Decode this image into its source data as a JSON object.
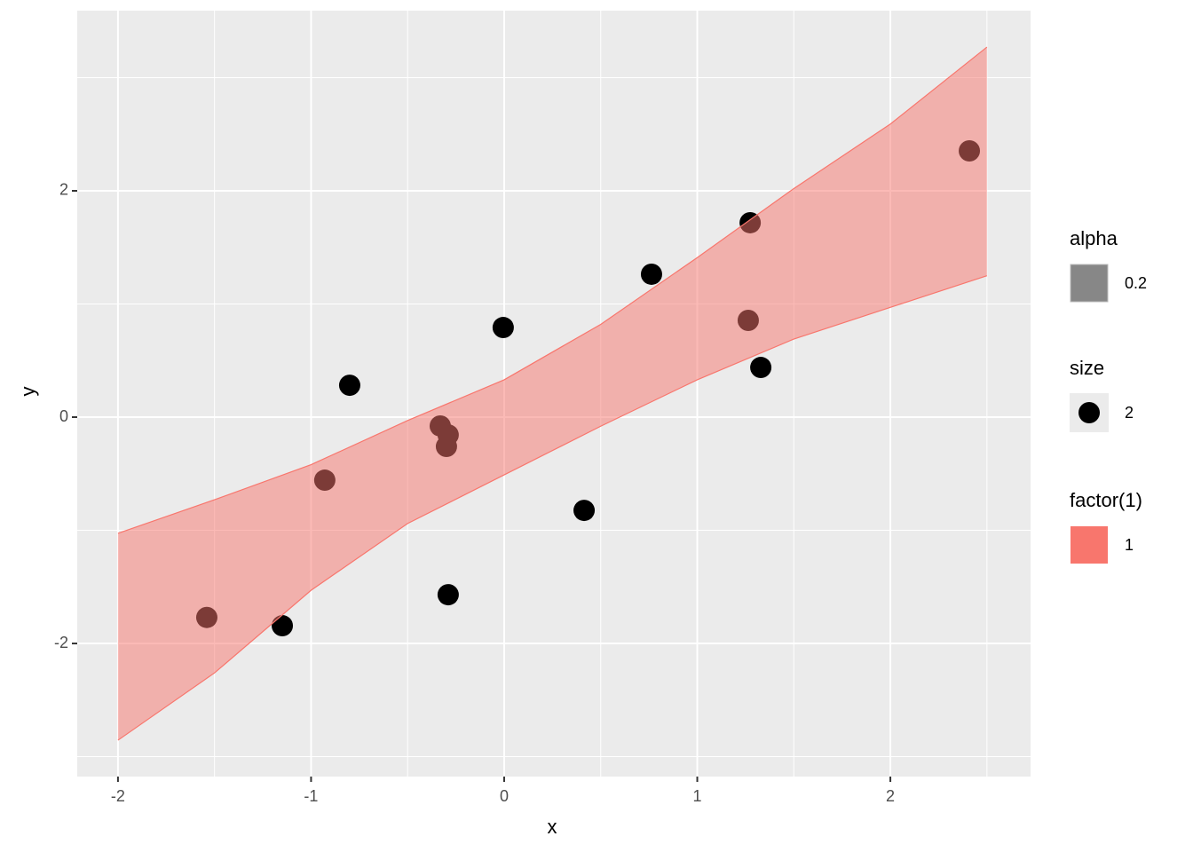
{
  "chart_data": {
    "type": "scatter",
    "x_label": "x",
    "y_label": "y",
    "xlim": [
      -2.211,
      2.726
    ],
    "ylim": [
      -3.176,
      3.592
    ],
    "xticks": [
      -2,
      -1,
      0,
      1,
      2
    ],
    "yticks": [
      -2,
      0,
      2
    ],
    "x_minor_grid": [
      -1.5,
      -0.5,
      0.5,
      1.5,
      2.5
    ],
    "y_minor_grid": [
      -3,
      -1,
      1,
      3
    ],
    "grid": true,
    "series": [
      {
        "color": "#000000",
        "x": [
          -1.54,
          -1.149,
          -0.929,
          -0.8,
          -0.331,
          -0.29,
          -0.299,
          -0.29,
          -0.005,
          0.414,
          0.763,
          1.274,
          1.264,
          1.329,
          2.409
        ],
        "y": [
          -1.77,
          -1.843,
          -0.557,
          0.282,
          -0.078,
          -0.157,
          -0.259,
          -1.569,
          0.792,
          -0.824,
          1.263,
          1.718,
          0.855,
          0.439,
          2.353
        ]
      }
    ],
    "ribbon": {
      "color": "#F8766D",
      "opacity": 0.5,
      "x": [
        -2,
        -1.5,
        -1,
        -0.5,
        0,
        0.5,
        1,
        1.5,
        2,
        2.5
      ],
      "upper": [
        -1.027,
        -0.73,
        -0.42,
        -0.03,
        0.33,
        0.82,
        1.41,
        2.02,
        2.59,
        3.27
      ],
      "lower": [
        -2.855,
        -2.26,
        -1.53,
        -0.94,
        -0.51,
        -0.08,
        0.33,
        0.69,
        0.97,
        1.25
      ]
    },
    "legends": [
      {
        "title": "alpha",
        "label": "0.2",
        "color": "#878787",
        "key": "rect"
      },
      {
        "title": "size",
        "label": "2",
        "color": "#000000",
        "key": "point"
      },
      {
        "title": "factor(1)",
        "label": "1",
        "color": "#F8766D",
        "key": "rect"
      }
    ]
  }
}
